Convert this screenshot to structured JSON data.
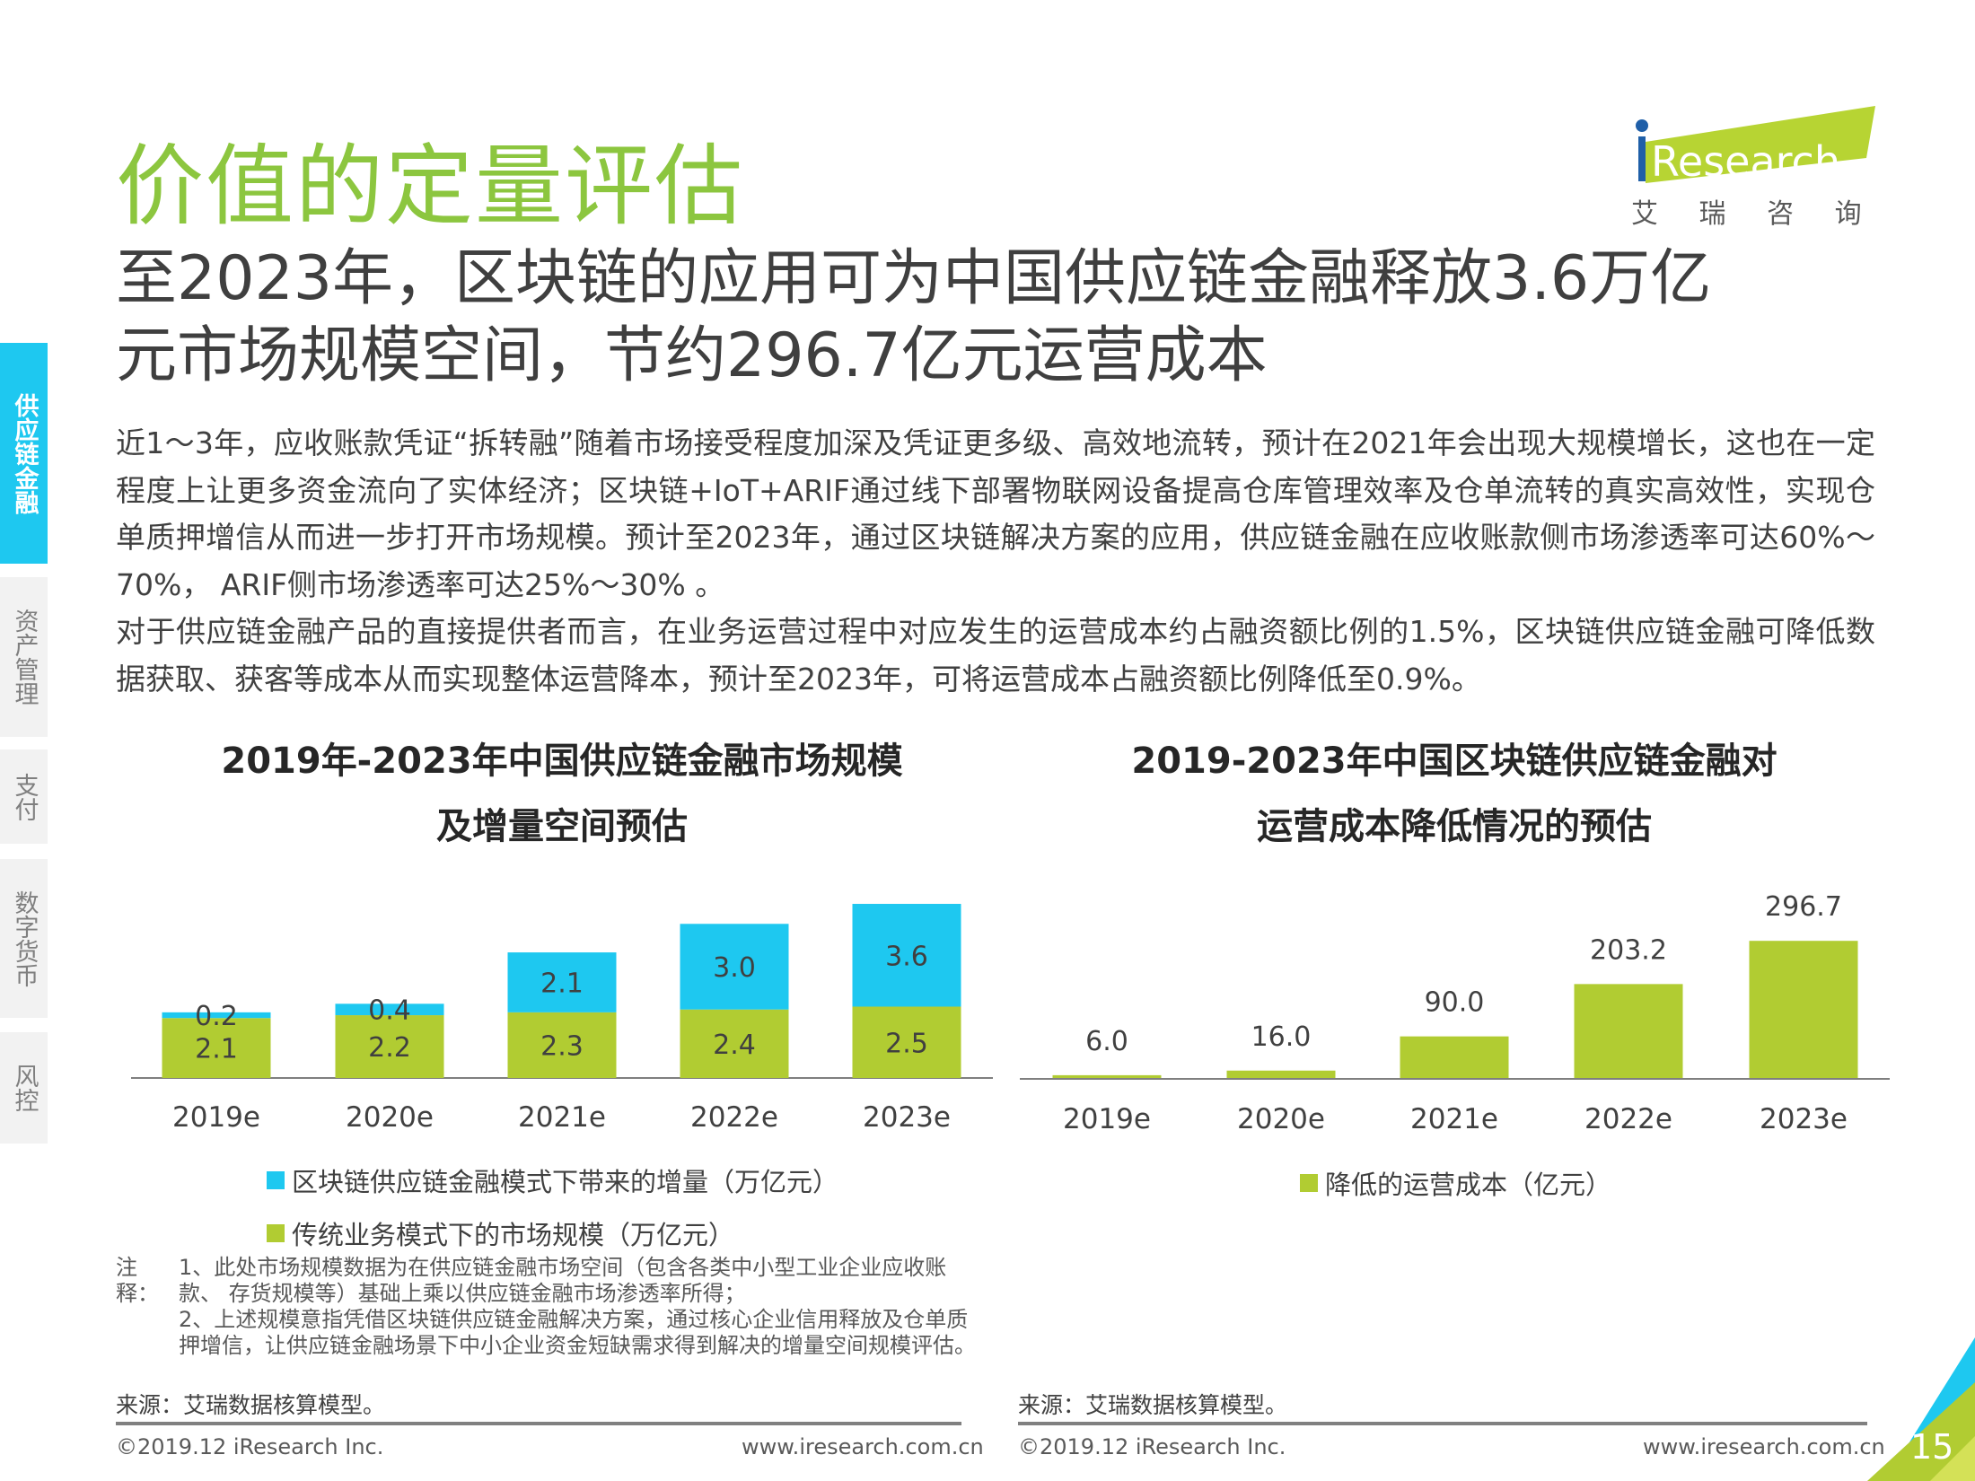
{
  "page_title": "价值的定量评估",
  "logo": {
    "brand": "iResearch",
    "subtitle": "艾 瑞 咨 询"
  },
  "headline": [
    "至2023年，区块链的应用可为中国供应链金融释放3.6万亿",
    "元市场规模空间，节约296.7亿元运营成本"
  ],
  "body": [
    "近1～3年，应收账款凭证“拆转融”随着市场接受程度加深及凭证更多级、高效地流转，预计在2021年会出现大规模增长，这也在一定程度上让更多资金流向了实体经济；区块链+IoT+ARIF通过线下部署物联网设备提高仓库管理效率及仓单流转的真实高效性，实现仓单质押增信从而进一步打开市场规模。预计至2023年，通过区块链解决方案的应用，供应链金融在应收账款侧市场渗透率可达60%～70%， ARIF侧市场渗透率可达25%～30% 。",
    "对于供应链金融产品的直接提供者而言，在业务运营过程中对应发生的运营成本约占融资额比例的1.5%，区块链供应链金融可降低数据获取、获客等成本从而实现整体运营降本，预计至2023年，可将运营成本占融资额比例降低至0.9%。"
  ],
  "sidebar": {
    "items": [
      {
        "label": "供应链金融",
        "active": true
      },
      {
        "label": "资产管理",
        "active": false
      },
      {
        "label": "支付",
        "active": false
      },
      {
        "label": "数字货币",
        "active": false
      },
      {
        "label": "风控",
        "active": false
      }
    ]
  },
  "colors": {
    "green": "#b1cc32",
    "blue": "#1ec8f0",
    "title_green": "#8cc63f"
  },
  "chart_data": [
    {
      "type": "bar",
      "stacked": true,
      "title": [
        "2019年-2023年中国供应链金融市场规模",
        "及增量空间预估"
      ],
      "categories": [
        "2019e",
        "2020e",
        "2021e",
        "2022e",
        "2023e"
      ],
      "series": [
        {
          "name": "传统业务模式下的市场规模（万亿元）",
          "values": [
            2.1,
            2.2,
            2.3,
            2.4,
            2.5
          ],
          "color": "#b1cc32"
        },
        {
          "name": "区块链供应链金融模式下带来的增量（万亿元）",
          "values": [
            0.2,
            0.4,
            2.1,
            3.0,
            3.6
          ],
          "color": "#1ec8f0"
        }
      ],
      "legend_placement": "bottom",
      "grid": false
    },
    {
      "type": "bar",
      "title": [
        "2019-2023年中国区块链供应链金融对",
        "运营成本降低情况的预估"
      ],
      "categories": [
        "2019e",
        "2020e",
        "2021e",
        "2022e",
        "2023e"
      ],
      "series": [
        {
          "name": "降低的运营成本（亿元）",
          "values": [
            6.0,
            16.0,
            90.0,
            203.2,
            296.7
          ],
          "color": "#b1cc32"
        }
      ],
      "legend_placement": "bottom",
      "grid": false
    }
  ],
  "notes": {
    "label": "注释：",
    "items": [
      "1、此处市场规模数据为在供应链金融市场空间（包含各类中小型工业企业应收账款、 存货规模等）基础上乘以供应链金融市场渗透率所得；",
      "2、上述规模意指凭借区块链供应链金融解决方案，通过核心企业信用释放及仓单质押增信，让供应链金融场景下中小企业资金短缺需求得到解决的增量空间规模评估。"
    ]
  },
  "source_left": "来源：艾瑞数据核算模型。",
  "source_right": "来源：艾瑞数据核算模型。",
  "footer": {
    "copyright": "©2019.12 iResearch Inc.",
    "url": "www.iresearch.com.cn",
    "page_number": "15"
  }
}
